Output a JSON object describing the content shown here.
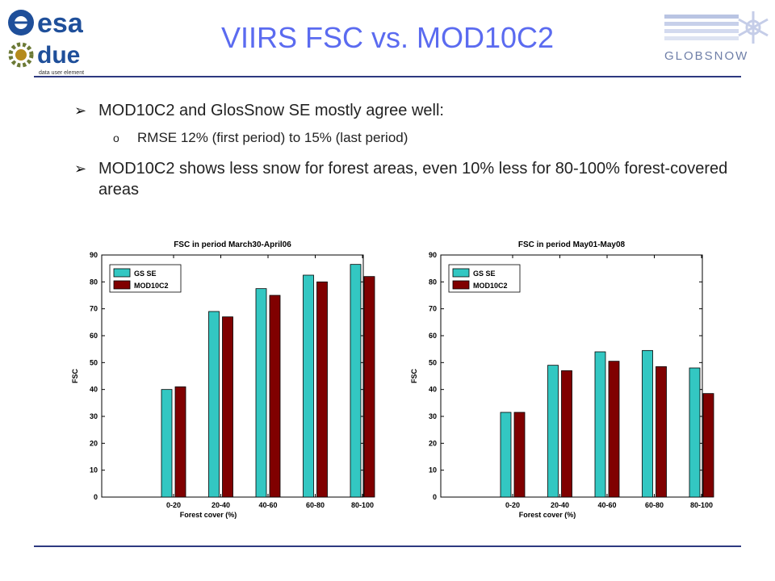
{
  "slide": {
    "title": "VIIRS FSC vs. MOD10C2",
    "bullets": [
      {
        "text": "MOD10C2 and GlosSnow SE mostly agree well:",
        "sub": [
          "RMSE 12% (first period) to 15% (last period)"
        ]
      },
      {
        "text": "MOD10C2 shows less snow for forest areas, even 10% less for 80-100% forest-covered areas",
        "sub": []
      }
    ]
  },
  "logos": {
    "esa": {
      "text1": "esa",
      "text2": "due",
      "text3": "data user element"
    },
    "globsnow": {
      "text": "GLOBSNOW"
    }
  },
  "colors": {
    "title": "#5b6bf0",
    "gs_se": "#33c7c2",
    "mod10c2": "#800000",
    "rule": "#2d3980"
  },
  "chart_data": [
    {
      "type": "bar",
      "title": "FSC in period March30-April06",
      "xlabel": "Forest cover (%)",
      "ylabel": "FSC",
      "ylim": [
        0,
        90
      ],
      "yticks": [
        0,
        10,
        20,
        30,
        40,
        50,
        60,
        70,
        80,
        90
      ],
      "categories": [
        "0-20",
        "20-40",
        "40-60",
        "60-80",
        "80-100"
      ],
      "legend_position": "top-left",
      "series": [
        {
          "name": "GS SE",
          "color": "#33c7c2",
          "values": [
            40,
            69,
            77.5,
            82.5,
            86.5
          ]
        },
        {
          "name": "MOD10C2",
          "color": "#800000",
          "values": [
            41,
            67,
            75,
            80,
            82
          ]
        }
      ]
    },
    {
      "type": "bar",
      "title": "FSC in period May01-May08",
      "xlabel": "Forest cover (%)",
      "ylabel": "FSC",
      "ylim": [
        0,
        90
      ],
      "yticks": [
        0,
        10,
        20,
        30,
        40,
        50,
        60,
        70,
        80,
        90
      ],
      "categories": [
        "0-20",
        "20-40",
        "40-60",
        "60-80",
        "80-100"
      ],
      "legend_position": "top-left",
      "series": [
        {
          "name": "GS SE",
          "color": "#33c7c2",
          "values": [
            31.5,
            49,
            54,
            54.5,
            48
          ]
        },
        {
          "name": "MOD10C2",
          "color": "#800000",
          "values": [
            31.5,
            47,
            50.5,
            48.5,
            38.5
          ]
        }
      ]
    }
  ]
}
